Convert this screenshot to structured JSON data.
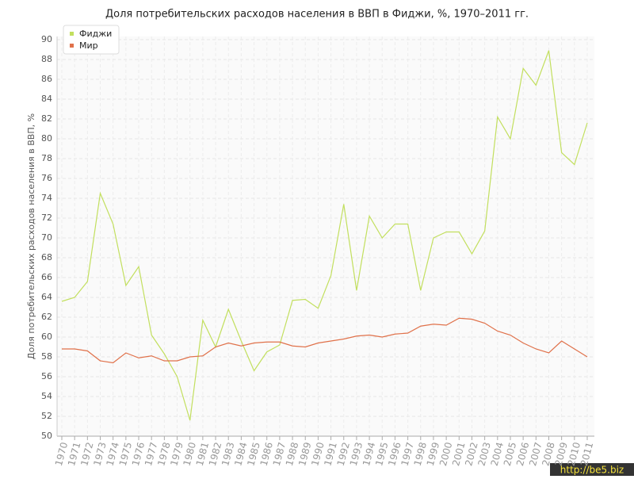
{
  "chart_data": {
    "type": "line",
    "title": "Доля потребительских расходов населения в ВВП в Фиджи, %, 1970–2011 гг.",
    "y_label": "Доля потребительских расходов населения в ВВП, %",
    "categories": [
      "1970",
      "1971",
      "1972",
      "1973",
      "1974",
      "1975",
      "1976",
      "1977",
      "1978",
      "1979",
      "1980",
      "1981",
      "1982",
      "1983",
      "1984",
      "1985",
      "1986",
      "1987",
      "1988",
      "1989",
      "1990",
      "1991",
      "1992",
      "1993",
      "1994",
      "1995",
      "1996",
      "1997",
      "1998",
      "1999",
      "2000",
      "2001",
      "2002",
      "2003",
      "2004",
      "2005",
      "2006",
      "2007",
      "2008",
      "2009",
      "2010",
      "2011"
    ],
    "series": [
      {
        "name": "Фиджи",
        "color": "#c2df5e",
        "values": [
          63.6,
          64.0,
          65.6,
          74.5,
          71.4,
          65.2,
          67.1,
          60.2,
          58.3,
          56.0,
          51.6,
          61.7,
          59.0,
          62.8,
          59.6,
          56.6,
          58.5,
          59.2,
          63.7,
          63.8,
          62.9,
          66.2,
          73.4,
          64.7,
          72.2,
          70.0,
          71.4,
          71.4,
          64.7,
          70.0,
          70.6,
          70.6,
          68.4,
          70.7,
          82.2,
          80.0,
          87.1,
          85.4,
          88.9,
          78.6,
          77.4,
          81.6
        ]
      },
      {
        "name": "Мир",
        "color": "#e0714a",
        "values": [
          58.8,
          58.8,
          58.6,
          57.6,
          57.4,
          58.4,
          57.9,
          58.1,
          57.6,
          57.6,
          58.0,
          58.1,
          59.0,
          59.4,
          59.1,
          59.4,
          59.5,
          59.5,
          59.1,
          59.0,
          59.4,
          59.6,
          59.8,
          60.1,
          60.2,
          60.0,
          60.3,
          60.4,
          61.1,
          61.3,
          61.2,
          61.9,
          61.8,
          61.4,
          60.6,
          60.2,
          59.4,
          58.8,
          58.4,
          59.6,
          58.8,
          58.0
        ]
      }
    ],
    "ylim": [
      50,
      90
    ],
    "yticks": [
      50,
      52,
      54,
      56,
      58,
      60,
      62,
      64,
      66,
      68,
      70,
      72,
      74,
      76,
      78,
      80,
      82,
      84,
      86,
      88,
      90
    ],
    "grid": true,
    "legend": "top-left",
    "watermark": "http://be5.biz"
  }
}
